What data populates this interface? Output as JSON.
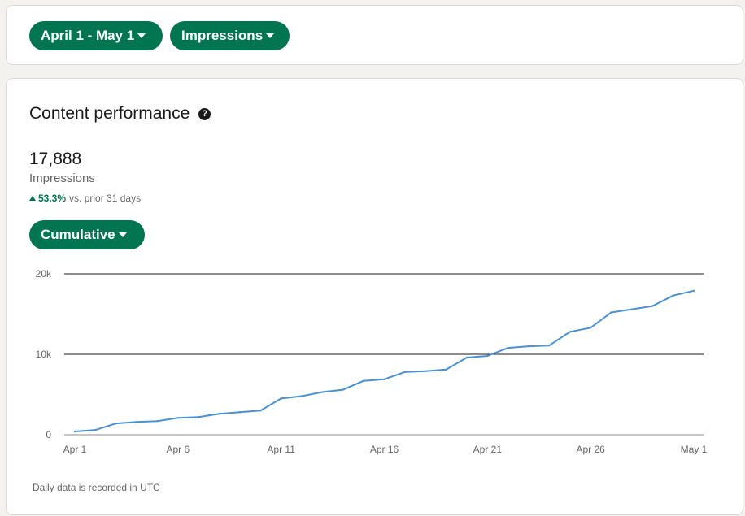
{
  "filters": {
    "date_range": "April 1 - May 1",
    "metric": "Impressions"
  },
  "performance": {
    "title": "Content performance",
    "help_icon_glyph": "?",
    "total": "17,888",
    "metric_label": "Impressions",
    "change_value": "53.3%",
    "change_text": "vs. prior 31 days",
    "view_mode": "Cumulative",
    "footnote": "Daily data is recorded in UTC"
  },
  "colors": {
    "accent": "#01754f",
    "line": "#4a90d2"
  },
  "chart_data": {
    "type": "line",
    "title": "",
    "xlabel": "",
    "ylabel": "",
    "ylim": [
      0,
      20000
    ],
    "y_ticks": [
      0,
      10000,
      20000
    ],
    "y_tick_labels": [
      "0",
      "10k",
      "20k"
    ],
    "x_tick_labels": [
      "Apr 1",
      "Apr 6",
      "Apr 11",
      "Apr 16",
      "Apr 21",
      "Apr 26",
      "May 1"
    ],
    "x": [
      "Apr 1",
      "Apr 2",
      "Apr 3",
      "Apr 4",
      "Apr 5",
      "Apr 6",
      "Apr 7",
      "Apr 8",
      "Apr 9",
      "Apr 10",
      "Apr 11",
      "Apr 12",
      "Apr 13",
      "Apr 14",
      "Apr 15",
      "Apr 16",
      "Apr 17",
      "Apr 18",
      "Apr 19",
      "Apr 20",
      "Apr 21",
      "Apr 22",
      "Apr 23",
      "Apr 24",
      "Apr 25",
      "Apr 26",
      "Apr 27",
      "Apr 28",
      "Apr 29",
      "Apr 30",
      "May 1"
    ],
    "series": [
      {
        "values": [
          400,
          600,
          1400,
          1600,
          1700,
          2100,
          2200,
          2600,
          2800,
          3000,
          4500,
          4800,
          5300,
          5600,
          6700,
          6900,
          7800,
          7900,
          8100,
          9600,
          9800,
          10800,
          11000,
          11100,
          12800,
          13300,
          15200,
          15600,
          16000,
          17300,
          17900
        ]
      }
    ],
    "grid": true,
    "legend": "none"
  }
}
